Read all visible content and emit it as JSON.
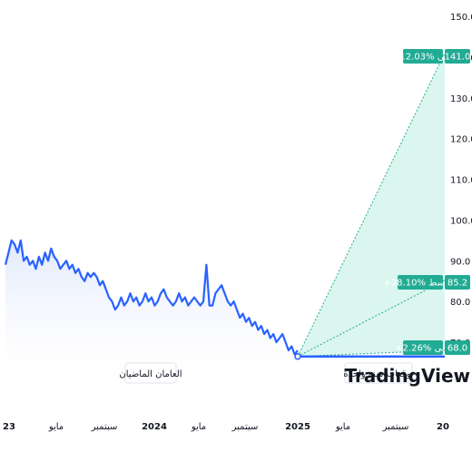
{
  "chart_data": {
    "type": "line",
    "x_tick_labels": [
      "23",
      "مايو",
      "سبتمبر",
      "2024",
      "مايو",
      "سبتمبر",
      "2025",
      "مايو",
      "سبتمبر",
      "20"
    ],
    "y_ticks": [
      70,
      80,
      90,
      100,
      110,
      120,
      130,
      140,
      150
    ],
    "y_tick_labels": [
      "70.0",
      "80.0",
      "90.0",
      "100.0",
      "110.0",
      "120.0",
      "130.0",
      "140.0",
      "150.0"
    ],
    "ylim": [
      67,
      152
    ],
    "history": {
      "label": "العامان الماضيان",
      "values": [
        89,
        92,
        95,
        94,
        92,
        95,
        90,
        91,
        89,
        90,
        88,
        91,
        89,
        92,
        90,
        93,
        91,
        90,
        88,
        89,
        90,
        88,
        89,
        87,
        88,
        86,
        85,
        87,
        86,
        87,
        86,
        84,
        85,
        83,
        81,
        80,
        78,
        79,
        81,
        79,
        80,
        82,
        80,
        81,
        79,
        80,
        82,
        80,
        81,
        79,
        80,
        82,
        83,
        81,
        80,
        79,
        80,
        82,
        80,
        81,
        79,
        80,
        81,
        80,
        79,
        80,
        89,
        79,
        79,
        82,
        83,
        84,
        82,
        80,
        79,
        80,
        78,
        76,
        77,
        75,
        76,
        74,
        75,
        73,
        74,
        72,
        73,
        71,
        72,
        70,
        71,
        72,
        70,
        68,
        69,
        67,
        68
      ]
    },
    "forecast": {
      "label": "توقعات سنة واحدة",
      "start_value": 66.5,
      "high": {
        "value": "141.0",
        "tag": "+112.03% أقصى",
        "level": 141.0
      },
      "average": {
        "value": "85.2",
        "tag": "+28.10% متوسط",
        "level": 85.2
      },
      "low": {
        "value": "68.0",
        "tag": "+2.26% أدنى",
        "level": 68.0
      }
    },
    "colors": {
      "line": "#2962ff",
      "area_top": "#dde6fb",
      "forecast_fill": "#d4f5ec",
      "forecast_line": "#22ab94",
      "tag": "#22ab94"
    }
  },
  "brand": {
    "logo_text": "TradingView"
  }
}
